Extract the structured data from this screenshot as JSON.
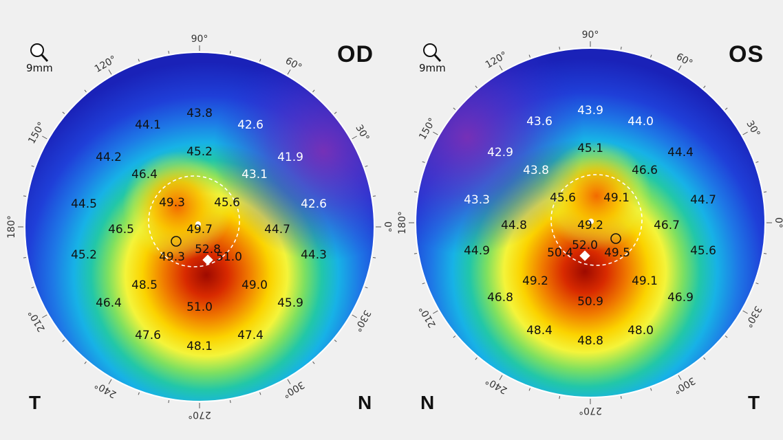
{
  "maps": [
    {
      "eye": "OD",
      "zoom_label": "9mm",
      "left_side_label": "T",
      "right_side_label": "N",
      "angle_labels": [
        "90°",
        "60°",
        "30°",
        "0°",
        "330°",
        "300°",
        "270°",
        "240°",
        "210°",
        "180°",
        "150°",
        "120°"
      ],
      "values": [
        {
          "text": "43.8",
          "light": false
        },
        {
          "text": "44.1",
          "light": false
        },
        {
          "text": "42.6",
          "light": true
        },
        {
          "text": "41.9",
          "light": true
        },
        {
          "text": "44.2",
          "light": false
        },
        {
          "text": "45.2",
          "light": false
        },
        {
          "text": "46.4",
          "light": false
        },
        {
          "text": "43.1",
          "light": true
        },
        {
          "text": "44.5",
          "light": false
        },
        {
          "text": "49.3",
          "light": false
        },
        {
          "text": "45.6",
          "light": false
        },
        {
          "text": "42.6",
          "light": true
        },
        {
          "text": "46.5",
          "light": false
        },
        {
          "text": "49.7",
          "light": false
        },
        {
          "text": "44.7",
          "light": false
        },
        {
          "text": "52.8",
          "light": false
        },
        {
          "text": "45.2",
          "light": false
        },
        {
          "text": "49.3",
          "light": false
        },
        {
          "text": "51.0",
          "light": false
        },
        {
          "text": "44.3",
          "light": false
        },
        {
          "text": "48.5",
          "light": false
        },
        {
          "text": "49.0",
          "light": false
        },
        {
          "text": "46.4",
          "light": false
        },
        {
          "text": "51.0",
          "light": false
        },
        {
          "text": "45.9",
          "light": false
        },
        {
          "text": "47.6",
          "light": false
        },
        {
          "text": "47.4",
          "light": false
        },
        {
          "text": "48.1",
          "light": false
        }
      ]
    },
    {
      "eye": "OS",
      "zoom_label": "9mm",
      "left_side_label": "N",
      "right_side_label": "T",
      "angle_labels": [
        "90°",
        "60°",
        "30°",
        "0°",
        "330°",
        "300°",
        "270°",
        "240°",
        "210°",
        "180°",
        "150°",
        "120°"
      ],
      "values": [
        {
          "text": "43.9",
          "light": true
        },
        {
          "text": "43.6",
          "light": true
        },
        {
          "text": "44.0",
          "light": true
        },
        {
          "text": "42.9",
          "light": true
        },
        {
          "text": "45.1",
          "light": false
        },
        {
          "text": "44.4",
          "light": false
        },
        {
          "text": "43.8",
          "light": true
        },
        {
          "text": "46.6",
          "light": false
        },
        {
          "text": "43.3",
          "light": true
        },
        {
          "text": "45.6",
          "light": false
        },
        {
          "text": "49.1",
          "light": false
        },
        {
          "text": "44.7",
          "light": false
        },
        {
          "text": "44.8",
          "light": false
        },
        {
          "text": "49.2",
          "light": false
        },
        {
          "text": "46.7",
          "light": false
        },
        {
          "text": "52.0",
          "light": false
        },
        {
          "text": "44.9",
          "light": false
        },
        {
          "text": "50.4",
          "light": false
        },
        {
          "text": "49.5",
          "light": false
        },
        {
          "text": "45.6",
          "light": false
        },
        {
          "text": "49.2",
          "light": false
        },
        {
          "text": "49.1",
          "light": false
        },
        {
          "text": "46.8",
          "light": false
        },
        {
          "text": "50.9",
          "light": false
        },
        {
          "text": "46.9",
          "light": false
        },
        {
          "text": "48.4",
          "light": false
        },
        {
          "text": "48.0",
          "light": false
        },
        {
          "text": "48.8",
          "light": false
        }
      ]
    }
  ],
  "colors": {
    "background": "#f0f0f0",
    "flat": "#1a2fd0",
    "steep": "#b01000"
  }
}
